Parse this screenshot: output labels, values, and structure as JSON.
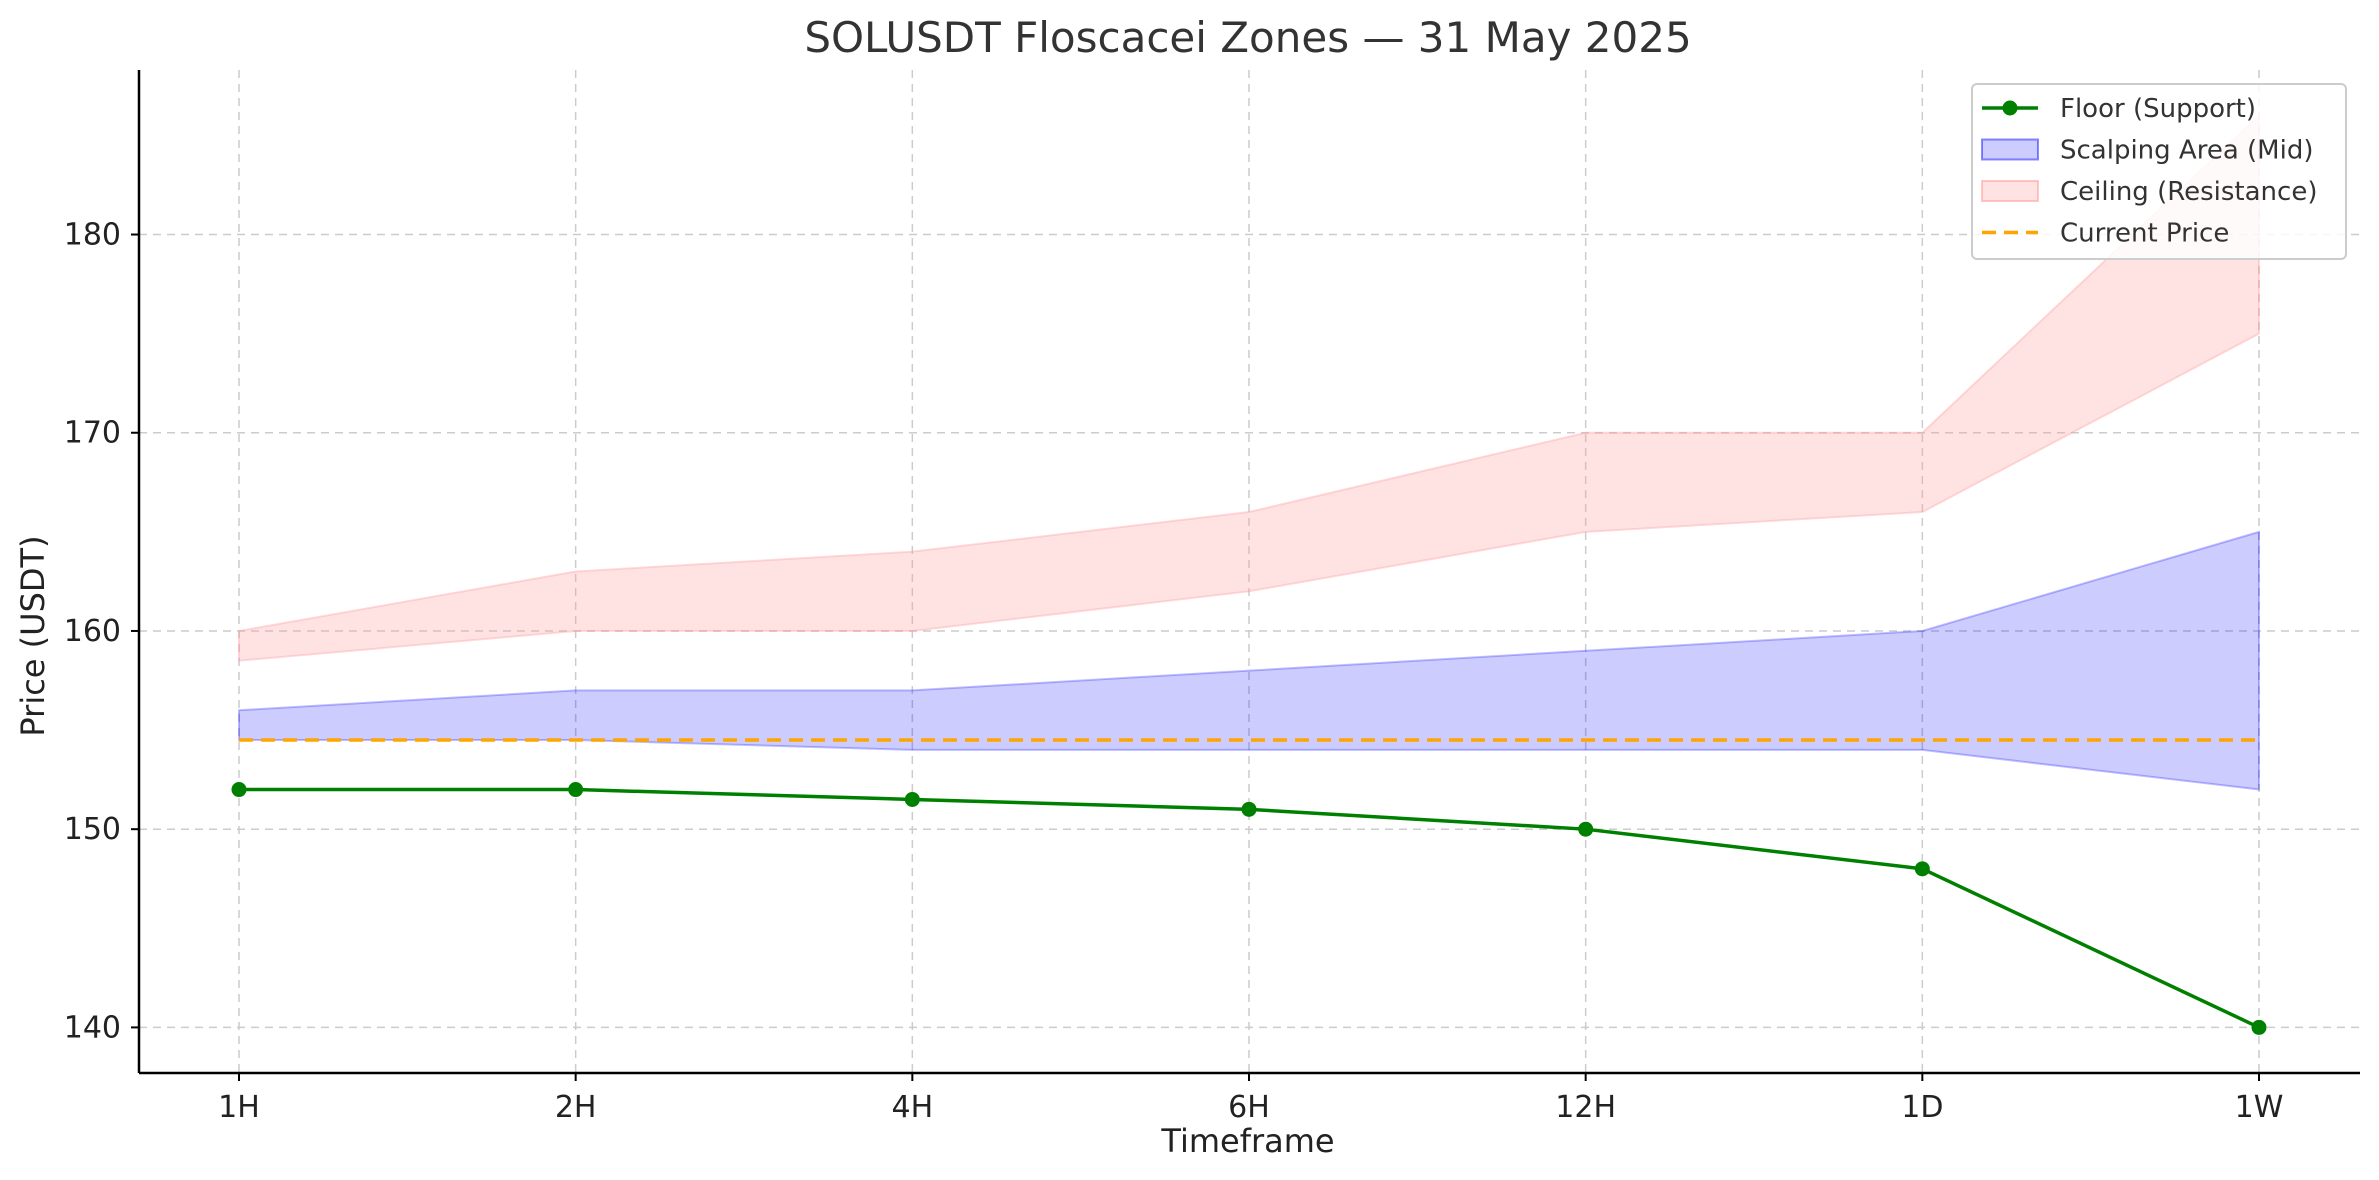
{
  "chart_data": {
    "type": "line",
    "title": "SOLUSDT Floscacei Zones — 31 May 2025",
    "xlabel": "Timeframe",
    "ylabel": "Price (USDT)",
    "categories": [
      "1H",
      "2H",
      "4H",
      "6H",
      "12H",
      "1D",
      "1W"
    ],
    "ylim": [
      137.7,
      188.3
    ],
    "yticks": [
      140,
      150,
      160,
      170,
      180
    ],
    "grid": true,
    "legend_position": "top-right",
    "series": [
      {
        "name": "Floor (Support)",
        "kind": "line-markers",
        "color": "#008000",
        "values": [
          152,
          152,
          151.5,
          151,
          150,
          148,
          140
        ]
      },
      {
        "name": "Scalping Area (Mid)",
        "kind": "band",
        "color": "#0000ff",
        "lower": [
          154.5,
          154.5,
          154,
          154,
          154,
          154,
          152
        ],
        "upper": [
          156,
          157,
          157,
          158,
          159,
          160,
          165
        ]
      },
      {
        "name": "Ceiling (Resistance)",
        "kind": "band",
        "color": "#ff9999",
        "lower": [
          158.5,
          160,
          160,
          162,
          165,
          166,
          175
        ],
        "upper": [
          160,
          163,
          164,
          166,
          170,
          170,
          186
        ]
      },
      {
        "name": "Current Price",
        "kind": "hline",
        "color": "#ffa500",
        "value": 154.5
      }
    ]
  }
}
